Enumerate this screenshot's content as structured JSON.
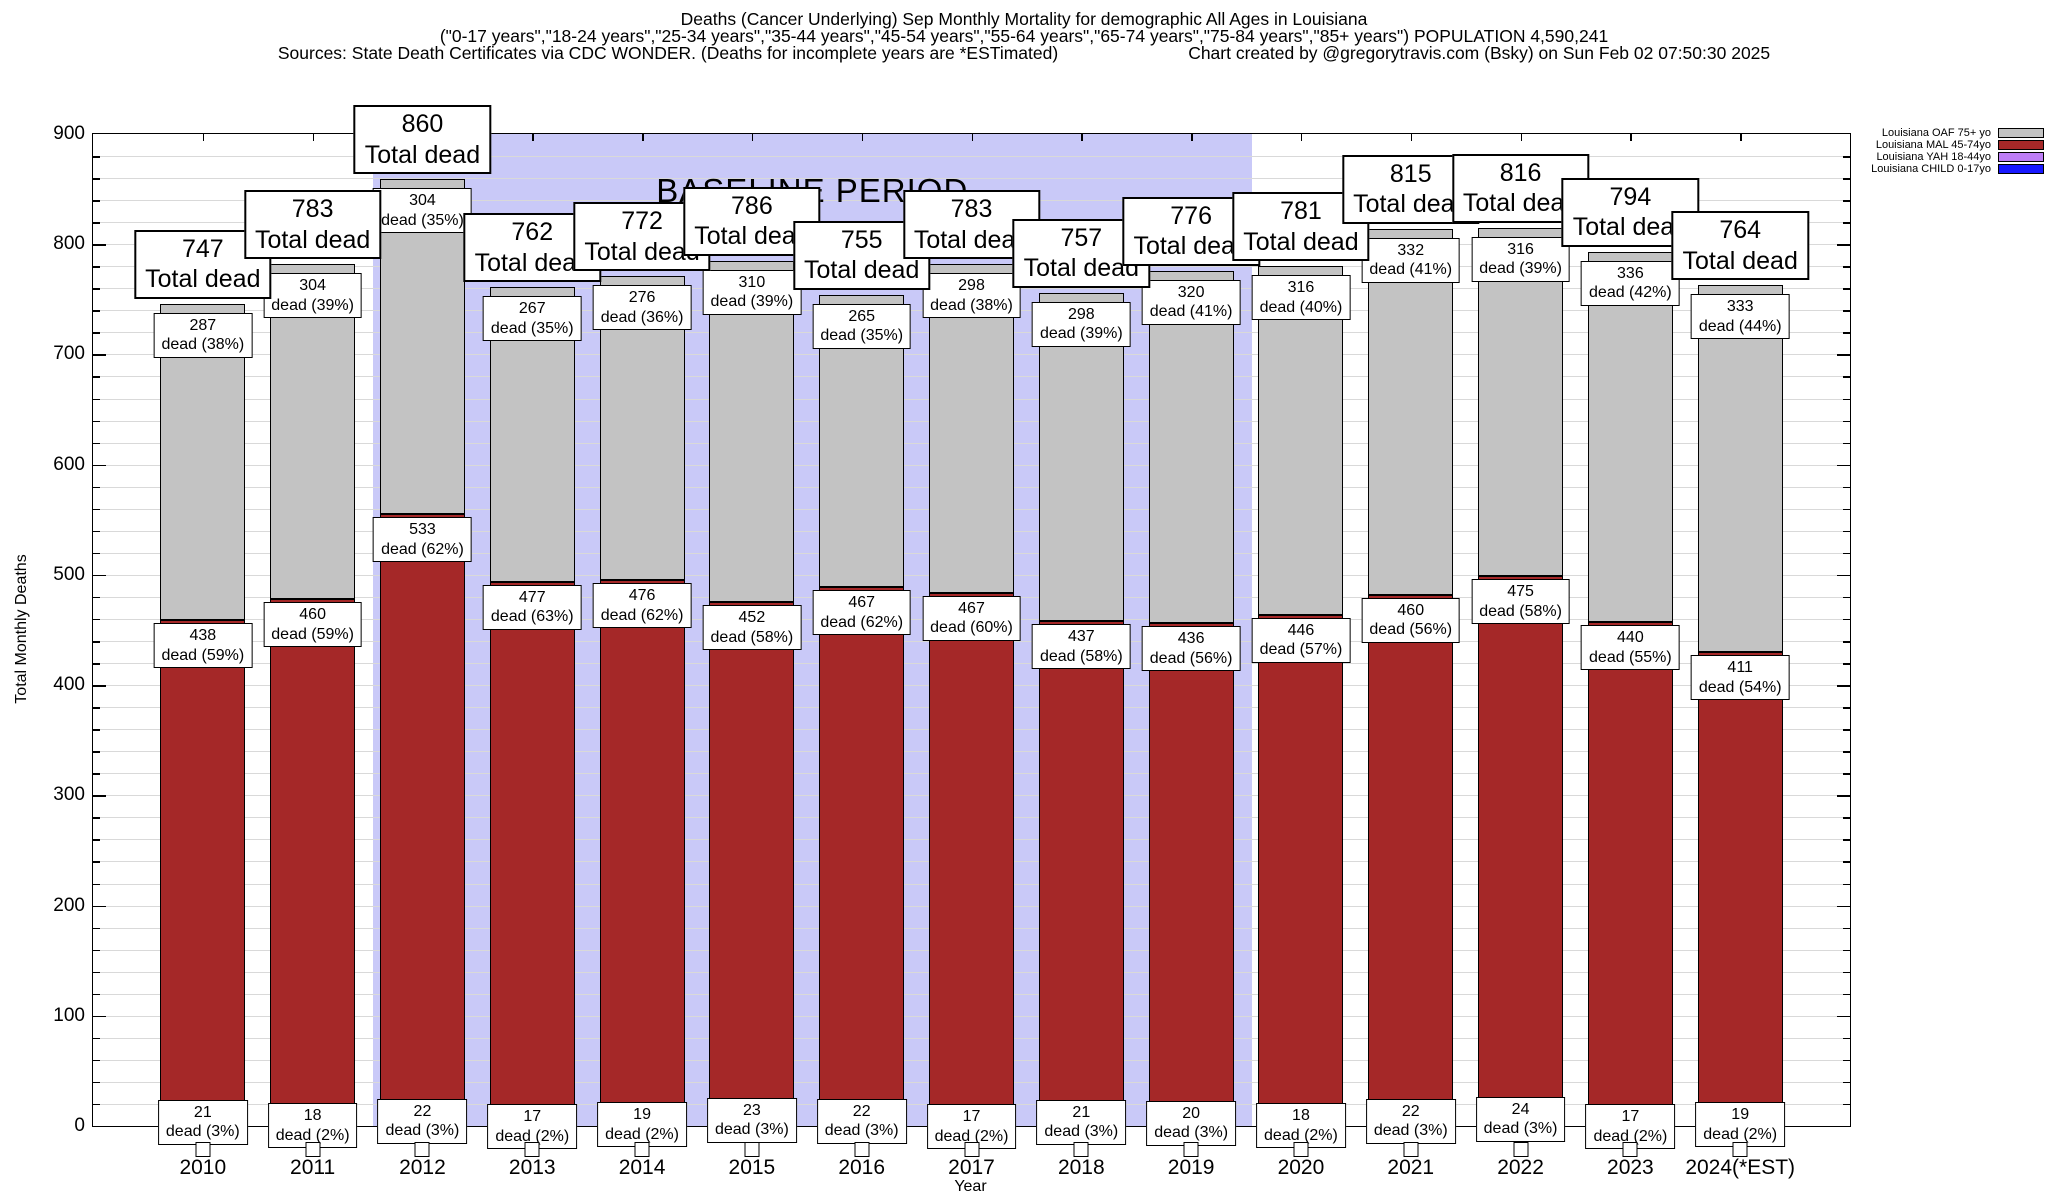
{
  "header": {
    "title_line1": "Deaths (Cancer Underlying) Sep Monthly Mortality for demographic All Ages in Louisiana",
    "title_line2": "(\"0-17 years\",\"18-24 years\",\"25-34 years\",\"35-44 years\",\"45-54 years\",\"55-64 years\",\"65-74 years\",\"75-84 years\",\"85+ years\") POPULATION 4,590,241",
    "title_line3_left": "Sources: State Death Certificates via CDC WONDER. (Deaths for incomplete years are *ESTimated)",
    "title_line3_right": "Chart created by @gregorytravis.com (Bsky) on Sun Feb 02 07:50:30 2025"
  },
  "chart_data": {
    "type": "bar",
    "stacked": true,
    "title": "Deaths (Cancer Underlying) Sep Monthly Mortality for demographic All Ages in Louisiana",
    "xlabel": "Year",
    "ylabel": "Total Monthly Deaths",
    "ylim": [
      0,
      900
    ],
    "ytick_major": 100,
    "ytick_minor": 20,
    "grid": true,
    "legend_position": "top-right-outside",
    "baseline_period": {
      "label": "BASELINE PERIOD",
      "from": "2012",
      "to": "2019",
      "band_color": "#c9c9f8"
    },
    "categories": [
      "2010",
      "2011",
      "2012",
      "2013",
      "2014",
      "2015",
      "2016",
      "2017",
      "2018",
      "2019",
      "2020",
      "2021",
      "2022",
      "2023",
      "2024(*EST)"
    ],
    "totals": [
      747,
      783,
      860,
      762,
      772,
      786,
      755,
      783,
      757,
      776,
      781,
      815,
      816,
      794,
      764
    ],
    "total_label_suffix": "Total dead",
    "segment_label_word": "dead",
    "series": [
      {
        "name": "Louisiana OAF 75+ yo",
        "color": "#c3c3c3",
        "values": [
          287,
          304,
          304,
          267,
          276,
          310,
          265,
          298,
          298,
          320,
          316,
          332,
          316,
          336,
          333
        ],
        "pcts": [
          38,
          39,
          35,
          35,
          36,
          39,
          35,
          38,
          39,
          41,
          40,
          41,
          39,
          42,
          44
        ]
      },
      {
        "name": "Louisiana MAL 45-74yo",
        "color": "#a52828",
        "values": [
          438,
          460,
          533,
          477,
          476,
          452,
          467,
          467,
          437,
          436,
          446,
          460,
          475,
          440,
          411
        ],
        "pcts": [
          59,
          59,
          62,
          63,
          62,
          58,
          62,
          60,
          58,
          56,
          57,
          56,
          58,
          55,
          54
        ]
      },
      {
        "name": "Louisiana YAH 18-44yo",
        "color": "#be7ef6",
        "values": [
          21,
          18,
          22,
          17,
          19,
          23,
          22,
          17,
          21,
          20,
          18,
          22,
          24,
          17,
          19
        ],
        "pcts": [
          3,
          2,
          3,
          2,
          2,
          3,
          3,
          2,
          3,
          3,
          2,
          3,
          3,
          2,
          2
        ]
      },
      {
        "name": "Louisiana CHILD 0-17yo",
        "color": "#1818ff"
      }
    ]
  }
}
